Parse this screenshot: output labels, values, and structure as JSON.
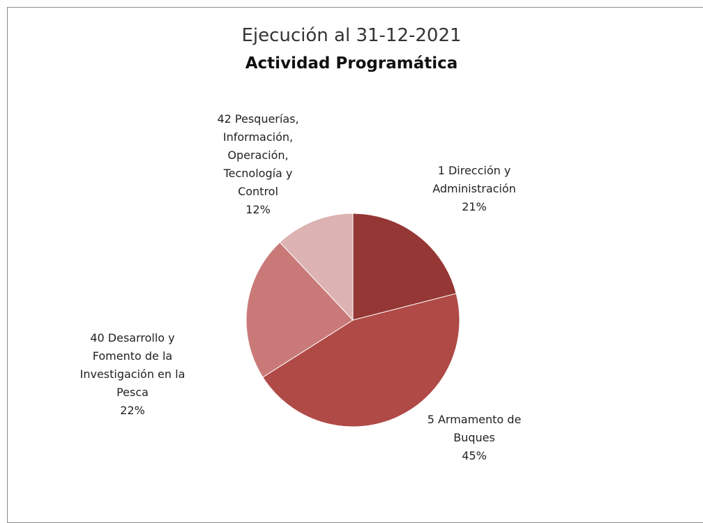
{
  "title_line1": "Ejecución al 31-12-2021",
  "title_line2": "Actividad Programática",
  "chart_data": {
    "type": "pie",
    "title": "Ejecución al 31-12-2021 / Actividad Programática",
    "slices": [
      {
        "name_lines": [
          "1 Dirección y",
          "Administración"
        ],
        "value": 21,
        "pct_label": "21%",
        "color": "#953735"
      },
      {
        "name_lines": [
          "5 Armamento de",
          "Buques"
        ],
        "value": 45,
        "pct_label": "45%",
        "color": "#b04a47"
      },
      {
        "name_lines": [
          "40 Desarrollo y",
          "Fomento de la",
          "Investigación en la",
          "Pesca"
        ],
        "value": 22,
        "pct_label": "22%",
        "color": "#c97a78"
      },
      {
        "name_lines": [
          "42 Pesquerías,",
          "Información,",
          "Operación,",
          "Tecnología y",
          "Control"
        ],
        "value": 12,
        "pct_label": "12%",
        "color": "#dcb3b2"
      }
    ]
  }
}
